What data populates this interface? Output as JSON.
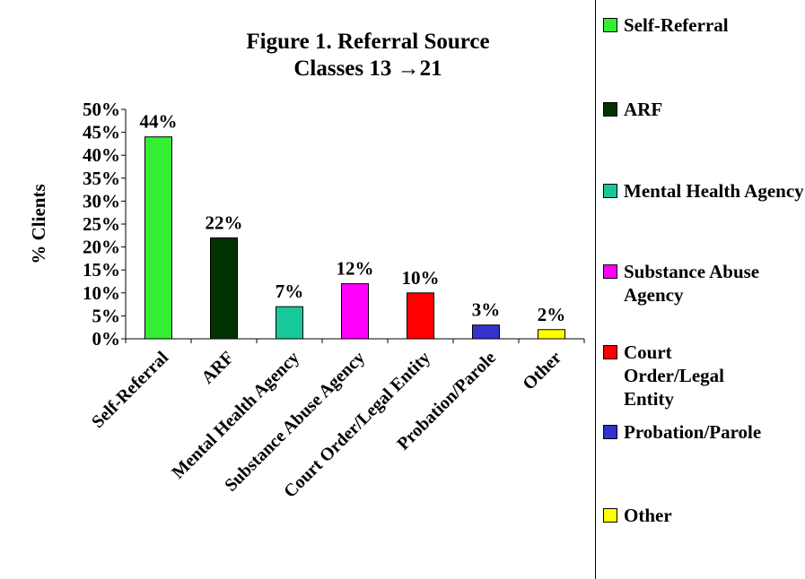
{
  "chart_data": {
    "type": "bar",
    "title": "Figure 1. Referral Source",
    "subtitle": "Classes 13 →21",
    "y_label": "% Clients",
    "categories": [
      "Self-Referral",
      "ARF",
      "Mental Health Agency",
      "Substance Abuse Agency",
      "Court Order/Legal Entity",
      "Probation/Parole",
      "Other"
    ],
    "values": [
      44,
      22,
      7,
      12,
      10,
      3,
      2
    ],
    "value_labels": [
      "44%",
      "22%",
      "7%",
      "12%",
      "10%",
      "3%",
      "2%"
    ],
    "colors": [
      "#33ee33",
      "#003300",
      "#19c89a",
      "#ff00ff",
      "#ff0000",
      "#3333cc",
      "#ffff00"
    ],
    "ylim": [
      0,
      50
    ],
    "yticks": [
      {
        "value": 0,
        "label": "0%"
      },
      {
        "value": 5,
        "label": "5%"
      },
      {
        "value": 10,
        "label": "10%"
      },
      {
        "value": 15,
        "label": "15%"
      },
      {
        "value": 20,
        "label": "20%"
      },
      {
        "value": 25,
        "label": "25%"
      },
      {
        "value": 30,
        "label": "30%"
      },
      {
        "value": 35,
        "label": "35%"
      },
      {
        "value": 40,
        "label": "40%"
      },
      {
        "value": 45,
        "label": "45%"
      },
      {
        "value": 50,
        "label": "50%"
      }
    ],
    "grid": false,
    "legend": "right"
  }
}
